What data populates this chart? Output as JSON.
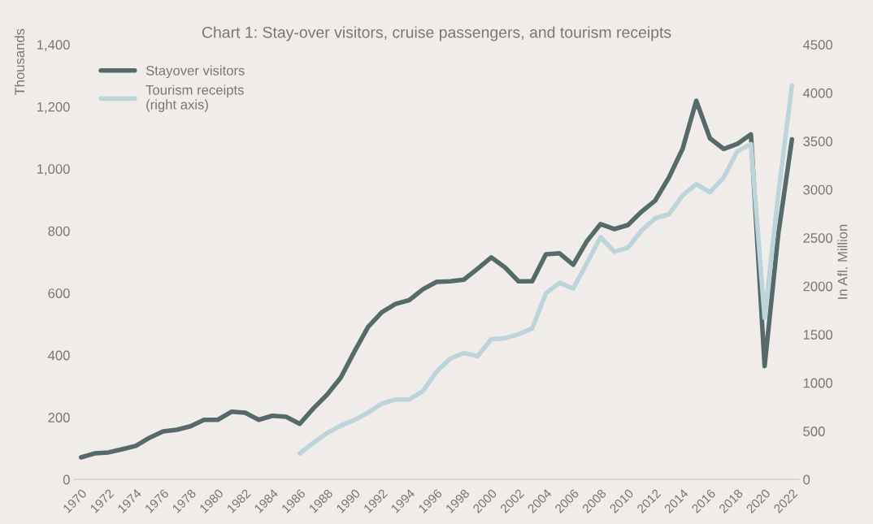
{
  "chart_data": {
    "type": "line",
    "title": "Chart 1: Stay-over visitors, cruise passengers, and tourism receipts",
    "ylabel": "Thousands",
    "y2label": "In Afl. Million",
    "categories": [
      "1970",
      null,
      "1972",
      null,
      "1974",
      null,
      "1976",
      null,
      "1978",
      null,
      "1980",
      null,
      "1982",
      null,
      "1984",
      null,
      "1986",
      null,
      "1988",
      null,
      "1990",
      null,
      "1992",
      null,
      "1994",
      null,
      "1996",
      null,
      "1998",
      null,
      "2000",
      null,
      "2002",
      null,
      "2004",
      null,
      "2006",
      null,
      "2008",
      null,
      "2010",
      null,
      "2012",
      null,
      "2014",
      null,
      "2016",
      null,
      "2018",
      null,
      "2020",
      null,
      "2022"
    ],
    "series": [
      {
        "name": "Stayover visitors",
        "color": "#566a6a",
        "values": [
          71,
          84,
          87,
          97,
          108,
          134,
          155,
          160,
          171,
          192,
          192,
          218,
          215,
          192,
          205,
          202,
          179,
          229,
          273,
          328,
          412,
          491,
          538,
          565,
          577,
          612,
          636,
          638,
          643,
          678,
          715,
          683,
          638,
          638,
          725,
          728,
          691,
          767,
          822,
          806,
          819,
          862,
          898,
          972,
          1064,
          1219,
          1098,
          1064,
          1080,
          1111,
          365,
          790,
          1095
        ]
      },
      {
        "name": "Tourism receipts\n(right axis)",
        "color": "#bdd5da",
        "axis": "y2",
        "values": [
          null,
          null,
          null,
          null,
          null,
          null,
          null,
          null,
          null,
          null,
          null,
          null,
          null,
          null,
          null,
          null,
          270,
          380,
          481,
          557,
          616,
          692,
          785,
          827,
          827,
          912,
          1115,
          1250,
          1309,
          1275,
          1452,
          1461,
          1503,
          1562,
          1925,
          2035,
          1976,
          2237,
          2508,
          2356,
          2398,
          2575,
          2702,
          2744,
          2938,
          3056,
          2972,
          3124,
          3394,
          3470,
          1672,
          2950,
          4078
        ]
      }
    ],
    "ylim": [
      0,
      1400
    ],
    "yticks": [
      0,
      {
        "value": 200,
        "label": "200"
      },
      {
        "value": 400,
        "label": "400"
      },
      {
        "value": 600,
        "label": "600"
      },
      {
        "value": 800,
        "label": "800"
      },
      {
        "value": 1000,
        "label": "1,000"
      },
      {
        "value": 1200,
        "label": "1,200"
      },
      {
        "value": 1400,
        "label": "1,400"
      }
    ],
    "y2lim": [
      0,
      4500
    ],
    "y2ticks": [
      0,
      500,
      1000,
      1500,
      2000,
      2500,
      3000,
      3500,
      4000,
      4500
    ],
    "legend": "top left",
    "grid": false,
    "line_style": "solid",
    "marker": "none"
  }
}
